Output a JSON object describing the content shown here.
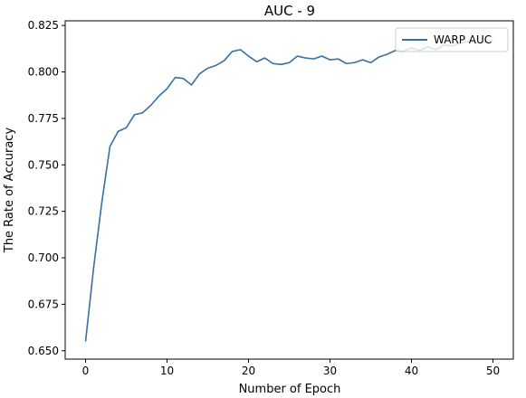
{
  "chart_data": {
    "type": "line",
    "title": "AUC - 9",
    "xlabel": "Number of Epoch",
    "ylabel": "The Rate of Accuracy",
    "xlim": [
      -2.5,
      52.5
    ],
    "ylim": [
      0.6455,
      0.8275
    ],
    "xticks": [
      0,
      10,
      20,
      30,
      40,
      50
    ],
    "xtick_labels": [
      "0",
      "10",
      "20",
      "30",
      "40",
      "50"
    ],
    "yticks": [
      0.65,
      0.675,
      0.7,
      0.725,
      0.75,
      0.775,
      0.8,
      0.825
    ],
    "ytick_labels": [
      "0.650",
      "0.675",
      "0.700",
      "0.725",
      "0.750",
      "0.775",
      "0.800",
      "0.825"
    ],
    "grid": false,
    "legend_position": "top-right",
    "colors": {
      "series": "#3a6f9f"
    },
    "series": [
      {
        "name": "WARP AUC",
        "x": [
          0,
          1,
          2,
          3,
          4,
          5,
          6,
          7,
          8,
          9,
          10,
          11,
          12,
          13,
          14,
          15,
          16,
          17,
          18,
          19,
          20,
          21,
          22,
          23,
          24,
          25,
          26,
          27,
          28,
          29,
          30,
          31,
          32,
          33,
          34,
          35,
          36,
          37,
          38,
          39,
          40,
          41,
          42,
          43,
          44,
          45,
          46,
          47,
          48,
          49,
          50
        ],
        "values": [
          0.655,
          0.695,
          0.73,
          0.76,
          0.768,
          0.77,
          0.777,
          0.778,
          0.782,
          0.787,
          0.791,
          0.797,
          0.7965,
          0.793,
          0.799,
          0.802,
          0.8035,
          0.806,
          0.811,
          0.812,
          0.8085,
          0.8055,
          0.8075,
          0.8045,
          0.804,
          0.805,
          0.8085,
          0.8075,
          0.807,
          0.8085,
          0.8065,
          0.807,
          0.8045,
          0.805,
          0.8065,
          0.805,
          0.808,
          0.8095,
          0.8115,
          0.811,
          0.813,
          0.8115,
          0.8135,
          0.812,
          0.8145,
          0.814,
          0.8155,
          0.8165,
          0.8155,
          0.816,
          0.8165
        ]
      }
    ]
  }
}
